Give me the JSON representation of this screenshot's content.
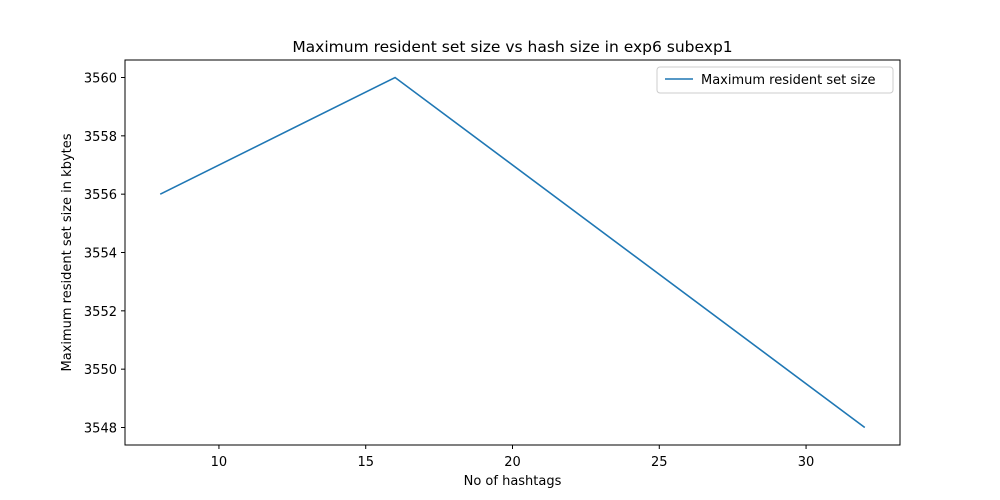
{
  "chart_data": {
    "type": "line",
    "title": "Maximum resident set size vs hash size in exp6 subexp1",
    "xlabel": "No of hashtags",
    "ylabel": "Maximum resident set size in kbytes",
    "xlim": [
      6.8,
      33.2
    ],
    "ylim": [
      3547.4,
      3560.6
    ],
    "xticks": [
      10,
      15,
      20,
      25,
      30
    ],
    "yticks": [
      3548,
      3550,
      3552,
      3554,
      3556,
      3558,
      3560
    ],
    "grid": false,
    "legend_position": "top-right",
    "series": [
      {
        "name": "Maximum resident set size",
        "color": "#1f77b4",
        "x": [
          8,
          16,
          32
        ],
        "y": [
          3556,
          3560,
          3548
        ]
      }
    ]
  }
}
